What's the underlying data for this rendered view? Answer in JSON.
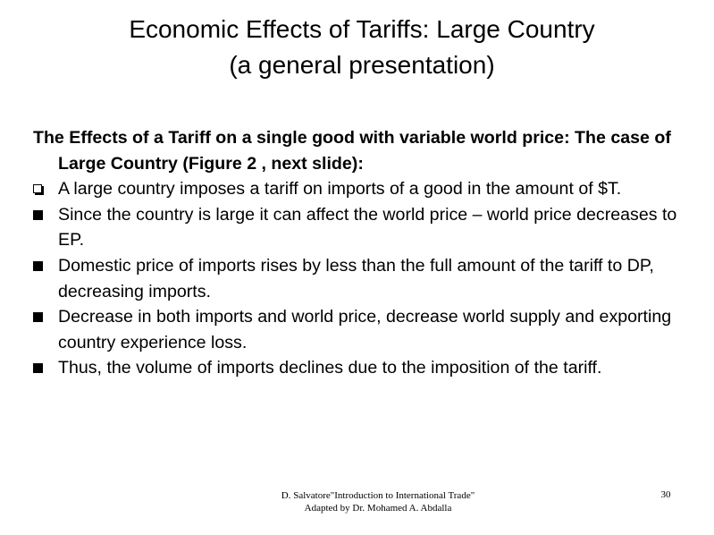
{
  "header": {
    "title": [
      "Economic Effects of Tariffs: Large Country",
      "(a general presentation)"
    ]
  },
  "body": {
    "intro": "The Effects of a Tariff on a single good with variable world price: The case of Large Country (Figure 2 , next slide):",
    "bullets": [
      "A large country imposes a tariff on imports of a good in the amount of $T.",
      "Since the country is large it can affect the world price – world price decreases to EP.",
      "Domestic price of imports rises by less than the full amount of the tariff to DP, decreasing imports.",
      "Decrease in both imports and world price, decrease world supply and exporting country experience loss.",
      "Thus, the volume of imports declines due to the imposition of the tariff."
    ]
  },
  "footer": {
    "credit": [
      "D. Salvatore\"Introduction to International Trade\"",
      "Adapted by Dr. Mohamed A. Abdalla"
    ],
    "page": "30"
  }
}
